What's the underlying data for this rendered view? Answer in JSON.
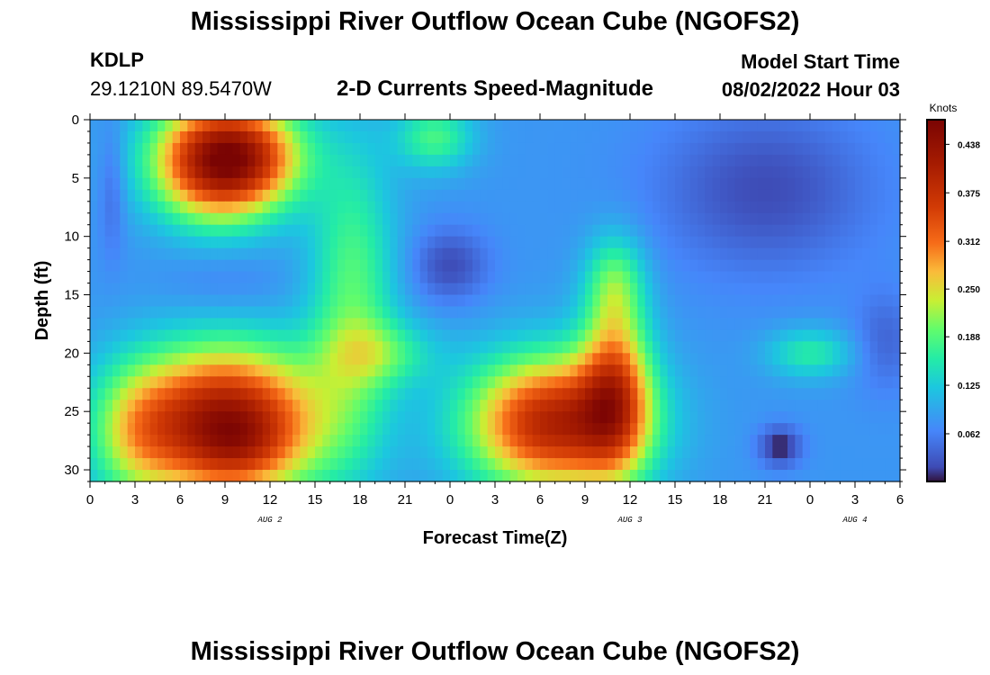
{
  "page": {
    "title": "Mississippi River Outflow Ocean Cube (NGOFS2)",
    "title_repeat": "Mississippi River Outflow Ocean Cube (NGOFS2)",
    "station": "KDLP",
    "coords": "29.1210N  89.5470W",
    "subtitle": "2-D Currents Speed-Magnitude",
    "model_start_label": "Model Start Time",
    "model_start_value": "08/02/2022 Hour 03"
  },
  "chart_data": {
    "type": "heatmap",
    "title": "2-D Currents Speed-Magnitude",
    "xlabel": "Forecast Time(Z)",
    "ylabel": "Depth (ft)",
    "x_range_hours": [
      0,
      54
    ],
    "x_tick_labels": [
      "0",
      "3",
      "6",
      "9",
      "12",
      "15",
      "18",
      "21",
      "0",
      "3",
      "6",
      "9",
      "12",
      "15",
      "18",
      "21",
      "0",
      "3",
      "6"
    ],
    "date_labels": [
      {
        "label": "AUG 2",
        "hour": 12
      },
      {
        "label": "AUG 3",
        "hour": 36
      },
      {
        "label": "AUG 4",
        "hour": 51
      }
    ],
    "ylim": [
      0,
      31
    ],
    "y_ticks": [
      0,
      5,
      10,
      15,
      20,
      25,
      30
    ],
    "y_reversed": true,
    "colorbar": {
      "title": "Knots",
      "range": [
        0,
        0.47
      ],
      "ticks": [
        "0.438",
        "0.375",
        "0.312",
        "0.250",
        "0.188",
        "0.125",
        "0.062"
      ],
      "tick_values": [
        0.438,
        0.375,
        0.312,
        0.25,
        0.188,
        0.125,
        0.062
      ]
    },
    "background_value": 0.08,
    "features": [
      {
        "t": 8.5,
        "d": 3.5,
        "st": 3.0,
        "sd": 3.5,
        "amp": 0.35
      },
      {
        "t": 11.5,
        "d": 3.0,
        "st": 2.5,
        "sd": 3.0,
        "amp": 0.1
      },
      {
        "t": 9.0,
        "d": 26.0,
        "st": 4.5,
        "sd": 4.5,
        "amp": 0.36
      },
      {
        "t": 10.0,
        "d": 28.0,
        "st": 2.0,
        "sd": 2.0,
        "amp": 0.04
      },
      {
        "t": 3.0,
        "d": 27.0,
        "st": 2.0,
        "sd": 4.0,
        "amp": 0.08
      },
      {
        "t": 17.5,
        "d": 15.0,
        "st": 2.0,
        "sd": 9.0,
        "amp": 0.11
      },
      {
        "t": 19.5,
        "d": 20.0,
        "st": 2.5,
        "sd": 2.0,
        "amp": 0.08
      },
      {
        "t": 23.0,
        "d": 1.5,
        "st": 1.8,
        "sd": 2.0,
        "amp": 0.1
      },
      {
        "t": 31.0,
        "d": 26.0,
        "st": 4.0,
        "sd": 4.0,
        "amp": 0.32
      },
      {
        "t": 35.0,
        "d": 23.0,
        "st": 1.6,
        "sd": 5.0,
        "amp": 0.2
      },
      {
        "t": 35.0,
        "d": 14.0,
        "st": 1.4,
        "sd": 3.0,
        "amp": 0.1
      },
      {
        "t": 24.0,
        "d": 12.5,
        "st": 1.8,
        "sd": 2.2,
        "amp": -0.06
      },
      {
        "t": 9.0,
        "d": 14.0,
        "st": 3.0,
        "sd": 2.0,
        "amp": -0.02
      },
      {
        "t": 45.0,
        "d": 6.0,
        "st": 5.0,
        "sd": 5.0,
        "amp": -0.06
      },
      {
        "t": 48.0,
        "d": 20.0,
        "st": 2.0,
        "sd": 1.5,
        "amp": 0.08
      },
      {
        "t": 46.0,
        "d": 28.0,
        "st": 1.0,
        "sd": 1.2,
        "amp": -0.08
      },
      {
        "t": 1.5,
        "d": 6.0,
        "st": 0.6,
        "sd": 4.0,
        "amp": -0.04
      },
      {
        "t": 53.0,
        "d": 19.0,
        "st": 1.5,
        "sd": 3.0,
        "amp": -0.04
      }
    ]
  }
}
